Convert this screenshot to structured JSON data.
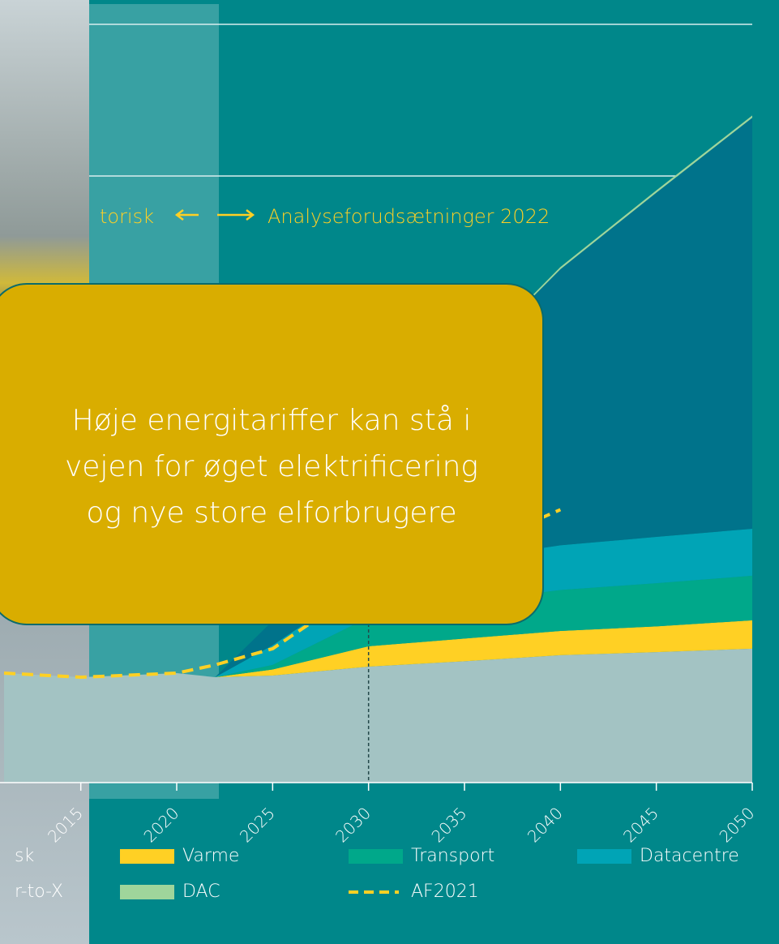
{
  "chart_data": {
    "type": "area",
    "x": [
      2011,
      2015,
      2020,
      2022,
      2025,
      2030,
      2035,
      2040,
      2045,
      2050
    ],
    "series": [
      {
        "name": "sk",
        "color": "#a3c3c3",
        "values": [
          7220,
          6950,
          7220,
          6950,
          7060,
          7650,
          8000,
          8400,
          8600,
          8830
        ]
      },
      {
        "name": "Varme",
        "color": "#ffd024",
        "values": [
          0,
          0,
          0,
          0,
          400,
          1340,
          1500,
          1600,
          1700,
          1870
        ]
      },
      {
        "name": "Transport",
        "color": "#00a88a",
        "values": [
          0,
          0,
          0,
          0,
          300,
          1900,
          2400,
          2700,
          2850,
          2940
        ]
      },
      {
        "name": "Datacentre",
        "color": "#00a4b6",
        "values": [
          0,
          0,
          0,
          0,
          1300,
          2400,
          2800,
          2950,
          3050,
          3100
        ]
      },
      {
        "name": "r-to-X",
        "color": "#00738b",
        "values": [
          0,
          0,
          0,
          0,
          1600,
          6400,
          12800,
          18200,
          22700,
          27100
        ]
      },
      {
        "name": "DAC",
        "color": "#9fd59b",
        "values": [
          0,
          0,
          0,
          0,
          0,
          0,
          100,
          150,
          150,
          150
        ]
      },
      {
        "name": "AF2021",
        "type": "line",
        "color": "#ffd024",
        "dashed": true,
        "values": [
          7220,
          6950,
          7220,
          7760,
          8830,
          13100,
          15250,
          18000,
          null,
          null
        ]
      }
    ],
    "xlim": [
      2011,
      2050
    ],
    "xticks": [
      2015,
      2020,
      2025,
      2030,
      2035,
      2040,
      2045,
      2050
    ],
    "ylim": [
      0,
      50000
    ],
    "yticks": [
      40000,
      50000
    ],
    "grid": true,
    "annotations": [
      "torisk",
      "Analyseforudsætninger 2022"
    ]
  },
  "callout": {
    "lines": [
      "Høje energitariffer kan stå i",
      "vejen for øget elektrificering",
      "og nye store elforbrugere"
    ]
  }
}
